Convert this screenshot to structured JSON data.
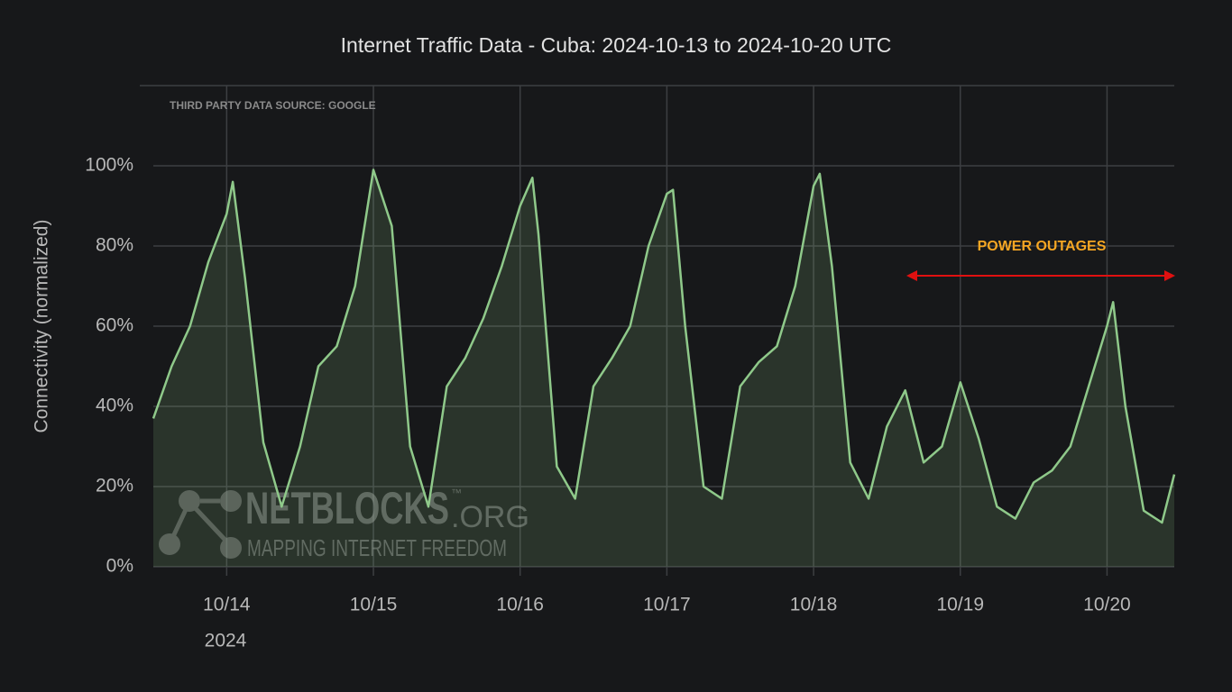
{
  "chart_data": {
    "type": "line",
    "title": "Internet Traffic Data - Cuba: 2024-10-13 to 2024-10-20 UTC",
    "ylabel": "Connectivity (normalized)",
    "source_note": "THIRD PARTY DATA SOURCE: GOOGLE",
    "annotation": "POWER OUTAGES",
    "watermark": {
      "name": "NETBLOCKS",
      "suffix": ".ORG",
      "tm": "™",
      "tagline": "MAPPING INTERNET FREEDOM"
    },
    "x_year_label": "2024",
    "color": "#8fc98a",
    "xlim": [
      "2024-10-13T12:00",
      "2024-10-20T11:00"
    ],
    "ylim": [
      0,
      120
    ],
    "yticks": [
      {
        "value": 0,
        "label": "0%"
      },
      {
        "value": 20,
        "label": "20%"
      },
      {
        "value": 40,
        "label": "40%"
      },
      {
        "value": 60,
        "label": "60%"
      },
      {
        "value": 80,
        "label": "80%"
      },
      {
        "value": 100,
        "label": "100%"
      }
    ],
    "xticks": [
      {
        "value": "2024-10-14T00:00",
        "label": "10/14"
      },
      {
        "value": "2024-10-15T00:00",
        "label": "10/15"
      },
      {
        "value": "2024-10-16T00:00",
        "label": "10/16"
      },
      {
        "value": "2024-10-17T00:00",
        "label": "10/17"
      },
      {
        "value": "2024-10-18T00:00",
        "label": "10/18"
      },
      {
        "value": "2024-10-19T00:00",
        "label": "10/19"
      },
      {
        "value": "2024-10-20T00:00",
        "label": "10/20"
      }
    ],
    "grid": true,
    "x": [
      "2024-10-13T12:00",
      "2024-10-13T15:00",
      "2024-10-13T18:00",
      "2024-10-13T21:00",
      "2024-10-14T00:00",
      "2024-10-14T01:00",
      "2024-10-14T03:00",
      "2024-10-14T06:00",
      "2024-10-14T09:00",
      "2024-10-14T12:00",
      "2024-10-14T15:00",
      "2024-10-14T18:00",
      "2024-10-14T21:00",
      "2024-10-15T00:00",
      "2024-10-15T03:00",
      "2024-10-15T06:00",
      "2024-10-15T09:00",
      "2024-10-15T12:00",
      "2024-10-15T15:00",
      "2024-10-15T18:00",
      "2024-10-15T21:00",
      "2024-10-16T00:00",
      "2024-10-16T02:00",
      "2024-10-16T03:00",
      "2024-10-16T06:00",
      "2024-10-16T09:00",
      "2024-10-16T12:00",
      "2024-10-16T15:00",
      "2024-10-16T18:00",
      "2024-10-16T21:00",
      "2024-10-17T00:00",
      "2024-10-17T01:00",
      "2024-10-17T03:00",
      "2024-10-17T06:00",
      "2024-10-17T09:00",
      "2024-10-17T12:00",
      "2024-10-17T15:00",
      "2024-10-17T18:00",
      "2024-10-17T21:00",
      "2024-10-18T00:00",
      "2024-10-18T01:00",
      "2024-10-18T03:00",
      "2024-10-18T06:00",
      "2024-10-18T09:00",
      "2024-10-18T12:00",
      "2024-10-18T15:00",
      "2024-10-18T18:00",
      "2024-10-18T21:00",
      "2024-10-19T00:00",
      "2024-10-19T03:00",
      "2024-10-19T06:00",
      "2024-10-19T09:00",
      "2024-10-19T12:00",
      "2024-10-19T15:00",
      "2024-10-19T18:00",
      "2024-10-19T21:00",
      "2024-10-20T00:00",
      "2024-10-20T01:00",
      "2024-10-20T03:00",
      "2024-10-20T06:00",
      "2024-10-20T09:00",
      "2024-10-20T11:00"
    ],
    "values": [
      37,
      50,
      60,
      76,
      88,
      96,
      72,
      31,
      15,
      30,
      50,
      55,
      70,
      99,
      85,
      30,
      15,
      45,
      52,
      62,
      75,
      90,
      97,
      83,
      25,
      17,
      45,
      52,
      60,
      80,
      93,
      94,
      60,
      20,
      17,
      45,
      51,
      55,
      70,
      95,
      98,
      75,
      26,
      17,
      35,
      44,
      26,
      30,
      46,
      32,
      15,
      12,
      21,
      24,
      30,
      45,
      60,
      66,
      40,
      14,
      11,
      23
    ]
  }
}
